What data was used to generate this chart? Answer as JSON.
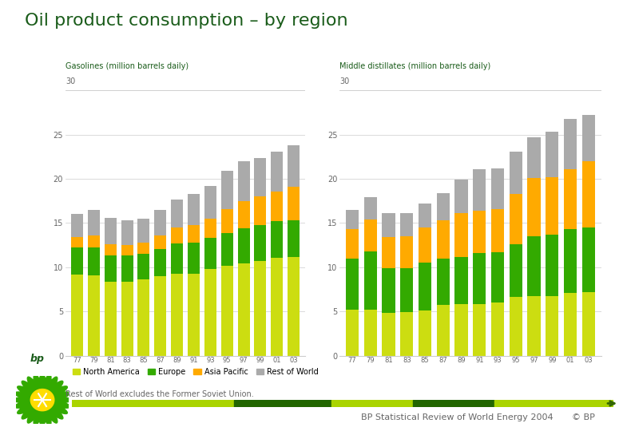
{
  "title": "Oil product consumption – by region",
  "title_color": "#1a5c1a",
  "title_fontsize": 16,
  "background_color": "#ffffff",
  "years": [
    "77",
    "79",
    "81",
    "83",
    "85",
    "87",
    "89",
    "91",
    "93",
    "95",
    "97",
    "99",
    "01",
    "03"
  ],
  "colors": {
    "north_america": "#ccdd11",
    "europe": "#33aa00",
    "asia_pacific": "#ffaa00",
    "rest_of_world": "#aaaaaa"
  },
  "gasoline": {
    "title": "Gasolines (million barrels daily)",
    "north_america": [
      9.2,
      9.1,
      8.4,
      8.4,
      8.6,
      9.0,
      9.3,
      9.3,
      9.8,
      10.2,
      10.4,
      10.7,
      11.1,
      11.2
    ],
    "europe": [
      3.0,
      3.1,
      2.9,
      2.9,
      2.9,
      3.1,
      3.4,
      3.5,
      3.5,
      3.7,
      4.0,
      4.1,
      4.1,
      4.1
    ],
    "asia_pacific": [
      1.2,
      1.4,
      1.3,
      1.2,
      1.3,
      1.5,
      1.8,
      2.0,
      2.2,
      2.7,
      3.1,
      3.2,
      3.4,
      3.8
    ],
    "rest_of_world": [
      2.6,
      2.9,
      3.0,
      2.8,
      2.7,
      2.9,
      3.2,
      3.5,
      3.7,
      4.3,
      4.5,
      4.4,
      4.5,
      4.7
    ]
  },
  "distillates": {
    "title": "Middle distillates (million barrels daily)",
    "north_america": [
      5.2,
      5.2,
      4.8,
      4.9,
      5.1,
      5.7,
      5.8,
      5.8,
      6.0,
      6.6,
      6.7,
      6.7,
      7.1,
      7.2
    ],
    "europe": [
      5.8,
      6.6,
      5.1,
      5.0,
      5.4,
      5.3,
      5.4,
      5.8,
      5.7,
      6.0,
      6.8,
      7.0,
      7.2,
      7.3
    ],
    "asia_pacific": [
      3.3,
      3.6,
      3.5,
      3.6,
      4.0,
      4.3,
      4.9,
      4.8,
      4.9,
      5.7,
      6.6,
      6.5,
      6.8,
      7.5
    ],
    "rest_of_world": [
      2.2,
      2.5,
      2.7,
      2.6,
      2.7,
      3.1,
      3.8,
      4.7,
      4.6,
      4.8,
      4.6,
      5.1,
      5.7,
      5.2
    ]
  },
  "yticks": [
    0,
    5,
    10,
    15,
    20,
    25
  ],
  "legend_labels": [
    "North America",
    "Europe",
    "Asia Pacific",
    "Rest of World"
  ],
  "footnote": "Rest of World excludes the Former Soviet Union.",
  "footer_text": "BP Statistical Review of World Energy 2004",
  "footer_copyright": "© BP",
  "bar_width": 0.72,
  "tick_label_color": "#666666",
  "grid_color": "#cccccc",
  "chart_title_color": "#1a5c1a"
}
